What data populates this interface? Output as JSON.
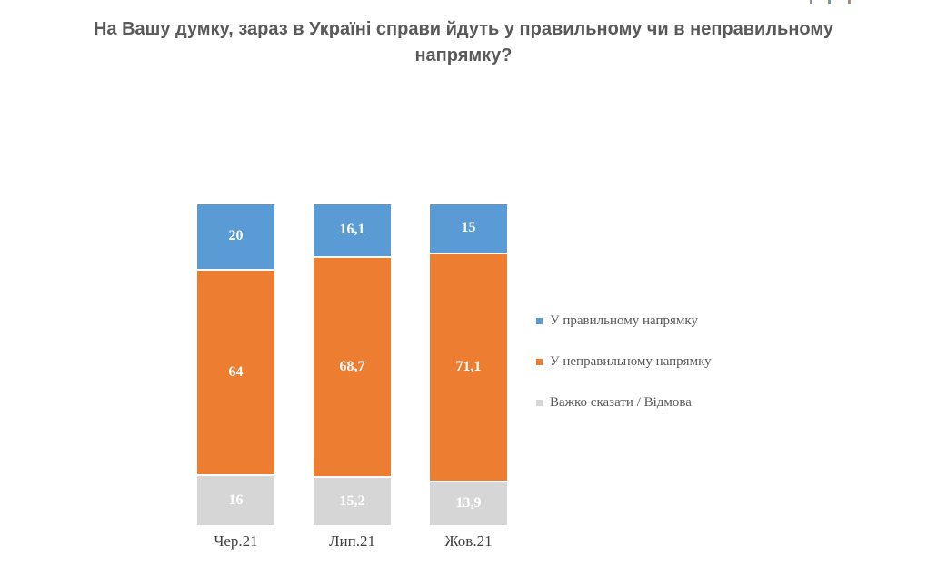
{
  "title": {
    "text": "На Вашу думку, зараз в Україні справи йдуть у правильному чи в неправильному напрямку?",
    "color": "#595959"
  },
  "chart_data": {
    "type": "bar",
    "stacked": true,
    "orientation": "vertical",
    "title": "На Вашу думку, зараз в Україні справи йдуть у правильному чи в неправильному напрямку?",
    "categories": [
      "Чер.21",
      "Лип.21",
      "Жов.21"
    ],
    "series": [
      {
        "name": "У правильному напрямку",
        "color": "#5B9BD5",
        "values": [
          20,
          16.1,
          15
        ],
        "display_values": [
          "20",
          "16,1",
          "15"
        ]
      },
      {
        "name": "У неправильному напрямку",
        "color": "#ED7D31",
        "values": [
          64,
          68.7,
          71.1
        ],
        "display_values": [
          "64",
          "68,7",
          "71,1"
        ]
      },
      {
        "name": "Важко сказати / Відмова",
        "color": "#D6D6D6",
        "values": [
          16,
          15.2,
          13.9
        ],
        "display_values": [
          "16",
          "15,2",
          "13,9"
        ]
      }
    ],
    "xlabel": "",
    "ylabel": "",
    "ylim": [
      0,
      100
    ],
    "grid": false,
    "axes_visible": false,
    "legend_position": "right",
    "value_label_color": "#FFFFFF",
    "value_label_style": "bold serif, comma decimal separator"
  },
  "artifacts": {
    "description": "tiny clipped colored text fragments at very top right edge",
    "fragments": [
      {
        "x": 891,
        "color_left": "#c08a52",
        "color_right": "#5b7fb5"
      },
      {
        "x": 911,
        "color_left": "#8a9a52",
        "color_right": "#5b9bd5"
      },
      {
        "x": 933,
        "color_left": "#5b9bd5",
        "color_right": "#ed7d31"
      }
    ]
  }
}
